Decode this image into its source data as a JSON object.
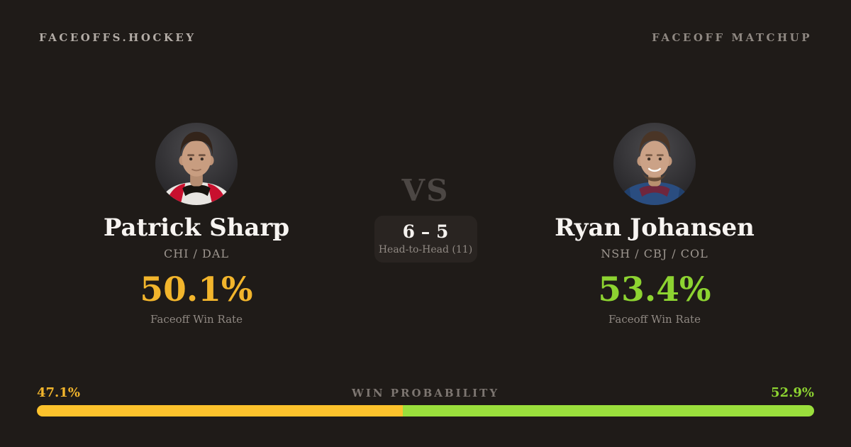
{
  "brand": "FACEOFFS.HOCKEY",
  "page_label": "FACEOFF MATCHUP",
  "players": {
    "left": {
      "name": "Patrick Sharp",
      "teams": "CHI / DAL",
      "win_rate": "50.1%",
      "win_rate_label": "Faceoff Win Rate",
      "win_prob": "47.1%"
    },
    "right": {
      "name": "Ryan Johansen",
      "teams": "NSH / CBJ / COL",
      "win_rate": "53.4%",
      "win_rate_label": "Faceoff Win Rate",
      "win_prob": "52.9%"
    }
  },
  "versus": {
    "label": "VS",
    "score": "6 – 5",
    "head_to_head": "Head-to-Head (11)"
  },
  "win_probability": {
    "label": "WIN PROBABILITY",
    "left_pct": 47.1,
    "right_pct": 52.9
  },
  "colors": {
    "background": "#1f1b18",
    "amber_text": "#f2b52c",
    "green_text": "#8dd331",
    "bar_amber": "#fcc22c",
    "bar_green": "#9adf3c",
    "panel": "#292421",
    "muted_text": "#8f8882"
  }
}
